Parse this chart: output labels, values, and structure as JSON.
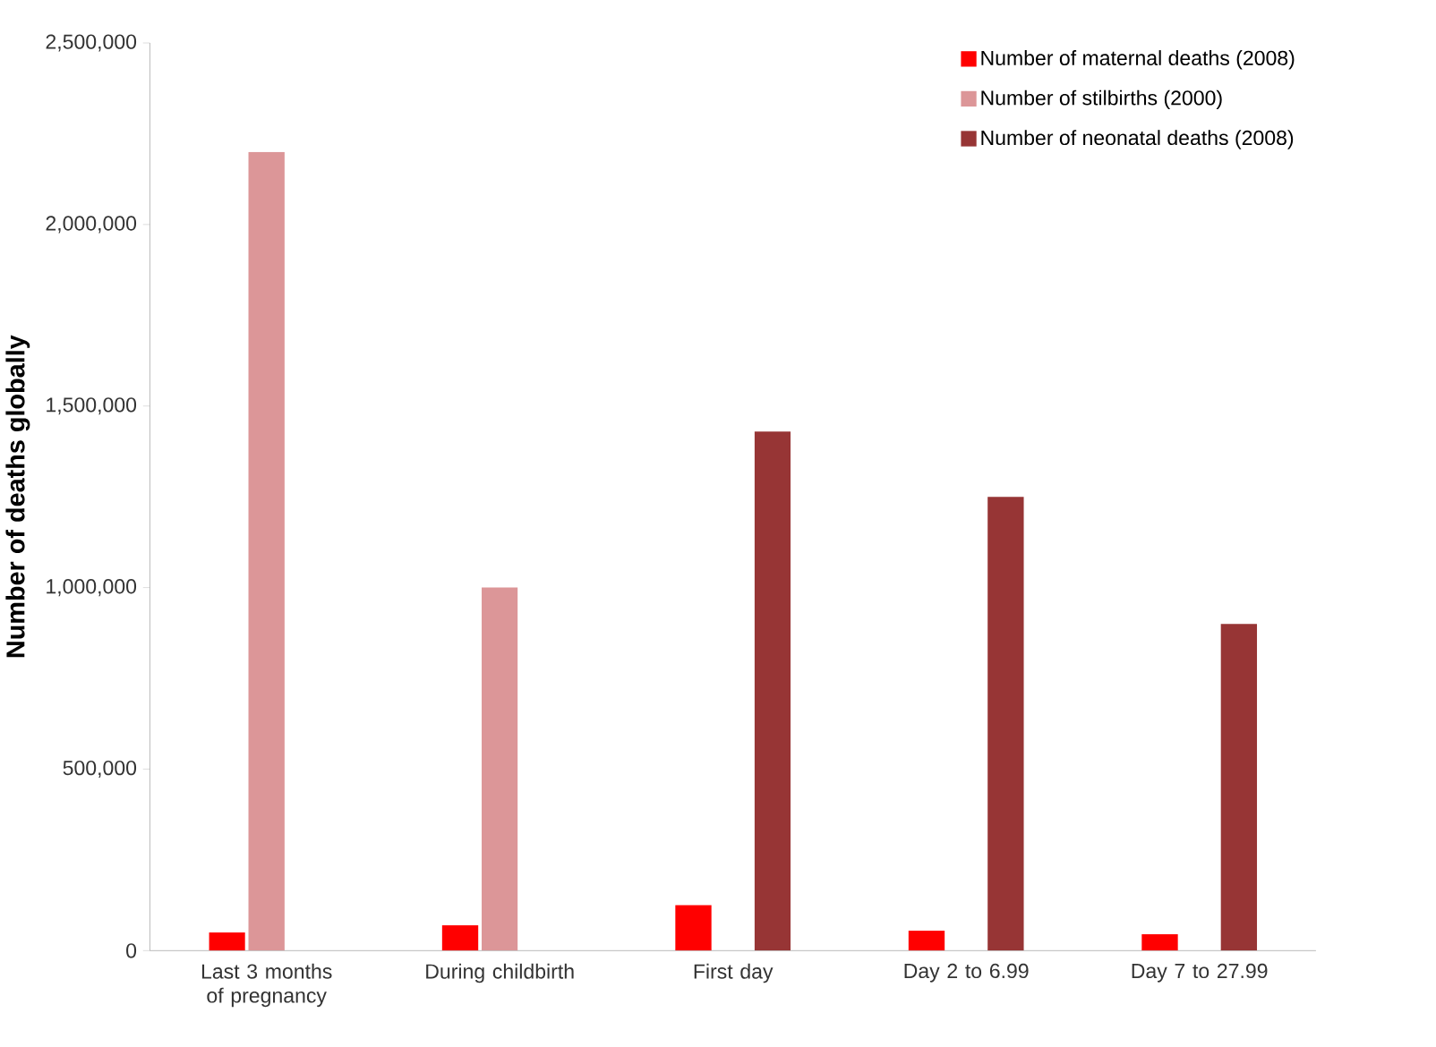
{
  "chart_data": {
    "type": "bar",
    "ylabel": "**Number of deaths globally**",
    "categories": [
      "Last 3 months of pregnancy",
      "During childbirth",
      "First day",
      "Day 2 to 6.99",
      "Day 7 to 27.99"
    ],
    "series": [
      {
        "name": "Number of maternal deaths (2008)",
        "color": "#ff0000",
        "values": [
          50000,
          70000,
          125000,
          55000,
          45000
        ]
      },
      {
        "name": "Number of stilbirths (2000)",
        "color": "#dc9698",
        "values": [
          2200000,
          1000000,
          null,
          null,
          null
        ]
      },
      {
        "name": "Number of neonatal deaths (2008)",
        "color": "#973535",
        "values": [
          null,
          null,
          1430000,
          1250000,
          900000
        ]
      }
    ],
    "ylim": [
      0,
      2500000
    ],
    "yticks": [
      0,
      {
        "value": 500000,
        "label": "500,000"
      },
      {
        "value": 1000000,
        "label": "1,000,000"
      },
      {
        "value": 1500000,
        "label": "1,500,000"
      },
      {
        "value": 2000000,
        "label": "2,000,000"
      },
      {
        "value": 2500000,
        "label": "2,500,000"
      }
    ],
    "legend": "top right",
    "grid": false
  }
}
